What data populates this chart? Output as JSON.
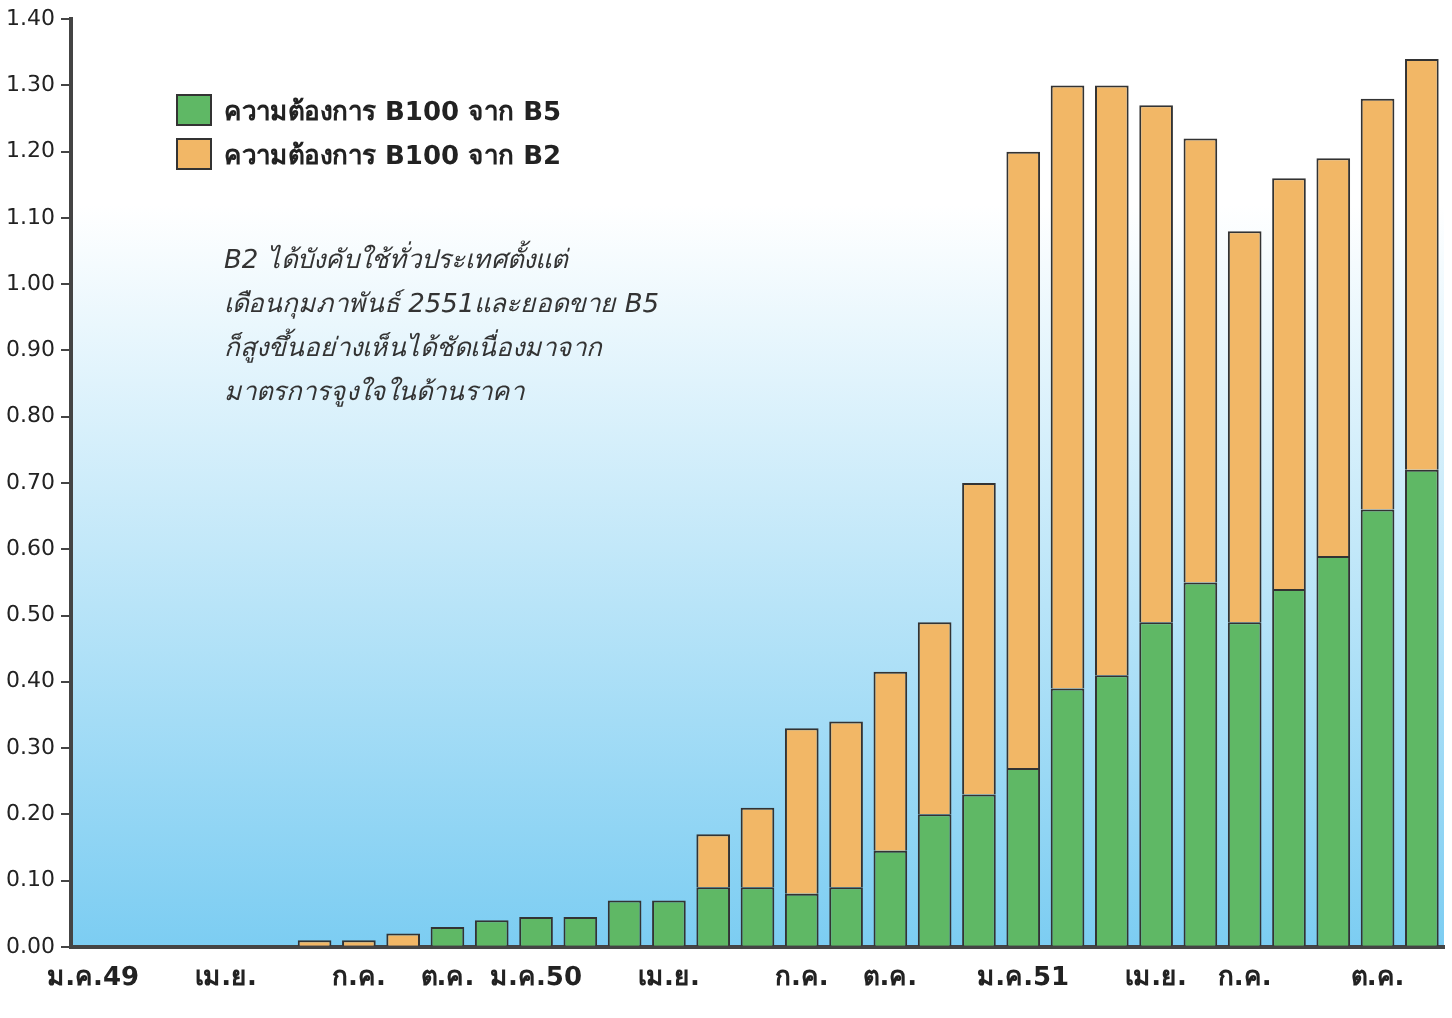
{
  "chart_data": {
    "type": "bar",
    "stacked": true,
    "categories": [
      "ม.ค.49",
      null,
      null,
      "เม.ย.",
      null,
      null,
      "ก.ค.",
      null,
      "ต.ค.",
      null,
      "ม.ค.50",
      null,
      null,
      "เม.ย.",
      null,
      null,
      "ก.ค.",
      null,
      "ต.ค.",
      null,
      null,
      "ม.ค.51",
      null,
      null,
      "เม.ย.",
      null,
      "ก.ค.",
      null,
      null,
      "ต.ค.",
      null
    ],
    "series": [
      {
        "name": "ความต้องการ B100 จาก B5",
        "color": "#5fb865",
        "values": [
          null,
          null,
          null,
          null,
          null,
          null,
          null,
          null,
          0.03,
          0.04,
          0.045,
          0.045,
          0.07,
          0.07,
          0.09,
          0.09,
          0.08,
          0.09,
          0.145,
          0.2,
          0.23,
          0.27,
          0.39,
          0.41,
          0.49,
          0.55,
          0.49,
          0.54,
          0.59,
          0.66,
          0.72
        ]
      },
      {
        "name": "ความต้องการ B100 จาก B2",
        "color": "#f2b766",
        "values": [
          null,
          null,
          null,
          null,
          null,
          0.01,
          0.01,
          0.02,
          null,
          null,
          null,
          null,
          null,
          null,
          0.08,
          0.12,
          0.25,
          0.25,
          0.27,
          0.29,
          0.47,
          0.93,
          0.91,
          0.89,
          0.78,
          0.67,
          0.59,
          0.62,
          0.6,
          0.62,
          0.62
        ]
      }
    ],
    "ylim": [
      0,
      1.4
    ],
    "yticks": [
      {
        "value": 0,
        "label": "0.00"
      },
      {
        "value": 0.1,
        "label": "0.10"
      },
      {
        "value": 0.2,
        "label": "0.20"
      },
      {
        "value": 0.3,
        "label": "0.30"
      },
      {
        "value": 0.4,
        "label": "0.40"
      },
      {
        "value": 0.5,
        "label": "0.50"
      },
      {
        "value": 0.6,
        "label": "0.60"
      },
      {
        "value": 0.7,
        "label": "0.70"
      },
      {
        "value": 0.8,
        "label": "0.80"
      },
      {
        "value": 0.9,
        "label": "0.90"
      },
      {
        "value": 1,
        "label": "1.00"
      },
      {
        "value": 1.1,
        "label": "1.10"
      },
      {
        "value": 1.2,
        "label": "1.20"
      },
      {
        "value": 1.3,
        "label": "1.30"
      },
      {
        "value": 1.4,
        "label": "1.40"
      }
    ],
    "grid": false,
    "legend": "top left",
    "annotations": [
      "B2 ได้บังคับใช้ทั่วประเทศตั้งแต่\nเดือนกุมภาพันธ์ 2551และยอดขาย B5\nก็สูงขึ้นอย่างเห็นได้ชัดเนื่องมาจาก\nมาตรการจูงใจในด้านราคา"
    ]
  }
}
